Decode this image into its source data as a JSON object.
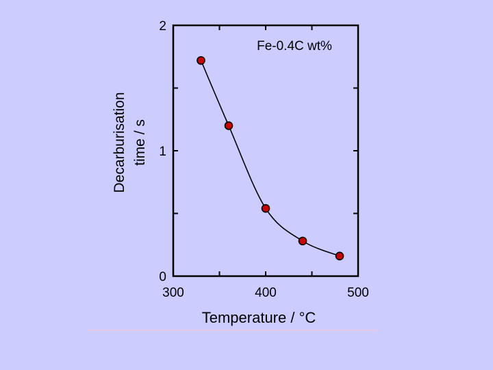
{
  "colors": {
    "background": "#ccccff",
    "axes": "#000000",
    "marker_fill": "#cc0000",
    "marker_edge": "#000000",
    "line": "#000000"
  },
  "chart_data": {
    "type": "line",
    "title": "",
    "annotation": "Fe-0.4C wt%",
    "xlabel": "Temperature / °C",
    "ylabel_line1": "Decarburisation",
    "ylabel_line2": "time  / s",
    "xlim": [
      300,
      500
    ],
    "ylim": [
      0,
      2
    ],
    "xticks": [
      300,
      350,
      400,
      450,
      500
    ],
    "yticks": [
      0,
      0.5,
      1,
      1.5,
      2
    ],
    "xtick_labels": [
      {
        "value": 300,
        "text": "300"
      },
      {
        "value": 400,
        "text": "400"
      },
      {
        "value": 500,
        "text": "500"
      }
    ],
    "ytick_labels": [
      {
        "value": 0,
        "text": "0"
      },
      {
        "value": 1,
        "text": "1"
      },
      {
        "value": 2,
        "text": "2"
      }
    ],
    "grid": false,
    "series": [
      {
        "x": [
          330,
          360,
          400,
          440,
          480
        ],
        "y": [
          1.72,
          1.2,
          0.54,
          0.28,
          0.16
        ]
      }
    ]
  }
}
